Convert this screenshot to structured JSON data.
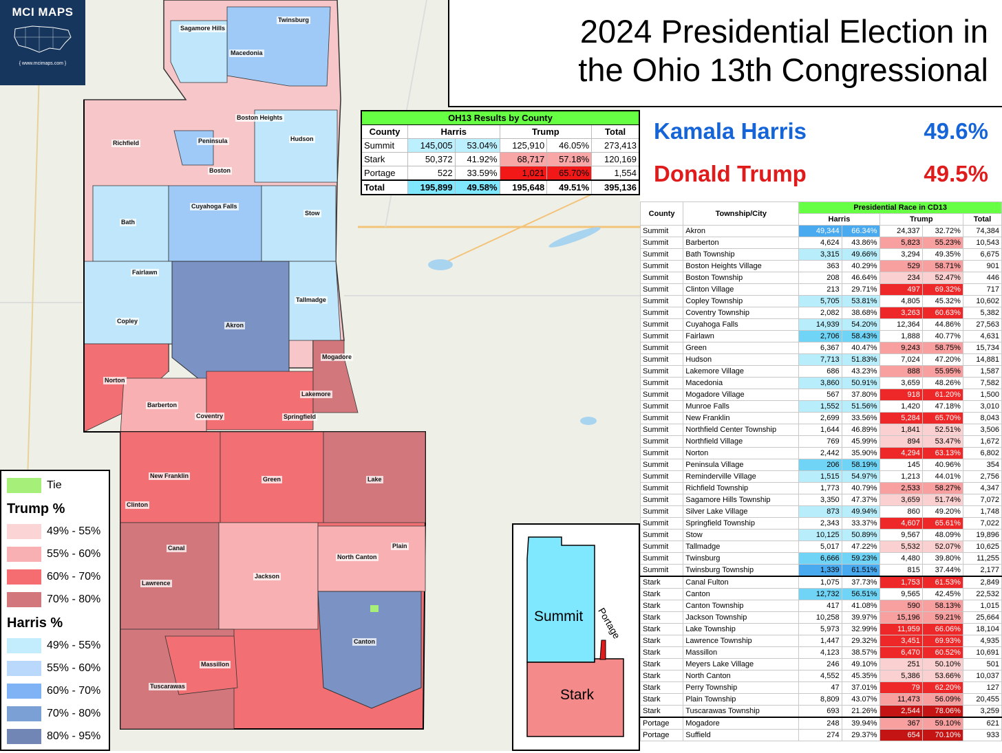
{
  "title_line1": "2024 Presidential Election in",
  "title_line2": "the Ohio 13th Congressional",
  "logo": {
    "name": "MCI MAPS",
    "url": "{ www.mcimaps.com }"
  },
  "candidates": [
    {
      "name": "Kamala Harris",
      "pct": "49.6%",
      "color": "#1565d8"
    },
    {
      "name": "Donald Trump",
      "pct": "49.5%",
      "color": "#e01b1b"
    }
  ],
  "colors": {
    "harris_header": "#1565d8",
    "trump_header": "#e01b1b",
    "tie": "#a6f07a",
    "table_header": "#66ff44"
  },
  "county_table": {
    "title": "OH13 Results by County",
    "headers": [
      "County",
      "Harris",
      "Trump",
      "Total"
    ],
    "rows": [
      {
        "county": "Summit",
        "h": "145,005",
        "hp": "53.04%",
        "t": "125,910",
        "tp": "46.05%",
        "total": "273,413",
        "hc": "#bdf0ff",
        "tc": ""
      },
      {
        "county": "Stark",
        "h": "50,372",
        "hp": "41.92%",
        "t": "68,717",
        "tp": "57.18%",
        "total": "120,169",
        "hc": "",
        "tc": "#f9a6a6"
      },
      {
        "county": "Portage",
        "h": "522",
        "hp": "33.59%",
        "t": "1,021",
        "tp": "65.70%",
        "total": "1,554",
        "hc": "",
        "tc": "#f21818"
      }
    ],
    "total": {
      "county": "Total",
      "h": "195,899",
      "hp": "49.58%",
      "t": "195,648",
      "tp": "49.51%",
      "total": "395,136",
      "hc": "#7fe8ff",
      "tc": ""
    }
  },
  "detail_table": {
    "title": "Presidential Race in CD13",
    "col_county": "County",
    "col_township": "Township/City",
    "col_harris": "Harris",
    "col_trump": "Trump",
    "col_total": "Total",
    "rows": [
      [
        "Summit",
        "Akron",
        "49,344",
        "66.34%",
        "24,337",
        "32.72%",
        "74,384"
      ],
      [
        "Summit",
        "Barberton",
        "4,624",
        "43.86%",
        "5,823",
        "55.23%",
        "10,543"
      ],
      [
        "Summit",
        "Bath Township",
        "3,315",
        "49.66%",
        "3,294",
        "49.35%",
        "6,675"
      ],
      [
        "Summit",
        "Boston Heights Village",
        "363",
        "40.29%",
        "529",
        "58.71%",
        "901"
      ],
      [
        "Summit",
        "Boston Township",
        "208",
        "46.64%",
        "234",
        "52.47%",
        "446"
      ],
      [
        "Summit",
        "Clinton Village",
        "213",
        "29.71%",
        "497",
        "69.32%",
        "717"
      ],
      [
        "Summit",
        "Copley Township",
        "5,705",
        "53.81%",
        "4,805",
        "45.32%",
        "10,602"
      ],
      [
        "Summit",
        "Coventry Township",
        "2,082",
        "38.68%",
        "3,263",
        "60.63%",
        "5,382"
      ],
      [
        "Summit",
        "Cuyahoga Falls",
        "14,939",
        "54.20%",
        "12,364",
        "44.86%",
        "27,563"
      ],
      [
        "Summit",
        "Fairlawn",
        "2,706",
        "58.43%",
        "1,888",
        "40.77%",
        "4,631"
      ],
      [
        "Summit",
        "Green",
        "6,367",
        "40.47%",
        "9,243",
        "58.75%",
        "15,734"
      ],
      [
        "Summit",
        "Hudson",
        "7,713",
        "51.83%",
        "7,024",
        "47.20%",
        "14,881"
      ],
      [
        "Summit",
        "Lakemore Village",
        "686",
        "43.23%",
        "888",
        "55.95%",
        "1,587"
      ],
      [
        "Summit",
        "Macedonia",
        "3,860",
        "50.91%",
        "3,659",
        "48.26%",
        "7,582"
      ],
      [
        "Summit",
        "Mogadore Village",
        "567",
        "37.80%",
        "918",
        "61.20%",
        "1,500"
      ],
      [
        "Summit",
        "Munroe Falls",
        "1,552",
        "51.56%",
        "1,420",
        "47.18%",
        "3,010"
      ],
      [
        "Summit",
        "New Franklin",
        "2,699",
        "33.56%",
        "5,284",
        "65.70%",
        "8,043"
      ],
      [
        "Summit",
        "Northfield Center Township",
        "1,644",
        "46.89%",
        "1,841",
        "52.51%",
        "3,506"
      ],
      [
        "Summit",
        "Northfield Village",
        "769",
        "45.99%",
        "894",
        "53.47%",
        "1,672"
      ],
      [
        "Summit",
        "Norton",
        "2,442",
        "35.90%",
        "4,294",
        "63.13%",
        "6,802"
      ],
      [
        "Summit",
        "Peninsula Village",
        "206",
        "58.19%",
        "145",
        "40.96%",
        "354"
      ],
      [
        "Summit",
        "Reminderville Village",
        "1,515",
        "54.97%",
        "1,213",
        "44.01%",
        "2,756"
      ],
      [
        "Summit",
        "Richfield Township",
        "1,773",
        "40.79%",
        "2,533",
        "58.27%",
        "4,347"
      ],
      [
        "Summit",
        "Sagamore Hills Township",
        "3,350",
        "47.37%",
        "3,659",
        "51.74%",
        "7,072"
      ],
      [
        "Summit",
        "Silver Lake Village",
        "873",
        "49.94%",
        "860",
        "49.20%",
        "1,748"
      ],
      [
        "Summit",
        "Springfield Township",
        "2,343",
        "33.37%",
        "4,607",
        "65.61%",
        "7,022"
      ],
      [
        "Summit",
        "Stow",
        "10,125",
        "50.89%",
        "9,567",
        "48.09%",
        "19,896"
      ],
      [
        "Summit",
        "Tallmadge",
        "5,017",
        "47.22%",
        "5,532",
        "52.07%",
        "10,625"
      ],
      [
        "Summit",
        "Twinsburg",
        "6,666",
        "59.23%",
        "4,480",
        "39.80%",
        "11,255"
      ],
      [
        "Summit",
        "Twinsburg Township",
        "1,339",
        "61.51%",
        "815",
        "37.44%",
        "2,177"
      ],
      [
        "Stark",
        "Canal Fulton",
        "1,075",
        "37.73%",
        "1,753",
        "61.53%",
        "2,849"
      ],
      [
        "Stark",
        "Canton",
        "12,732",
        "56.51%",
        "9,565",
        "42.45%",
        "22,532"
      ],
      [
        "Stark",
        "Canton Township",
        "417",
        "41.08%",
        "590",
        "58.13%",
        "1,015"
      ],
      [
        "Stark",
        "Jackson Township",
        "10,258",
        "39.97%",
        "15,196",
        "59.21%",
        "25,664"
      ],
      [
        "Stark",
        "Lake Township",
        "5,973",
        "32.99%",
        "11,959",
        "66.06%",
        "18,104"
      ],
      [
        "Stark",
        "Lawrence Township",
        "1,447",
        "29.32%",
        "3,451",
        "69.93%",
        "4,935"
      ],
      [
        "Stark",
        "Massillon",
        "4,123",
        "38.57%",
        "6,470",
        "60.52%",
        "10,691"
      ],
      [
        "Stark",
        "Meyers Lake Village",
        "246",
        "49.10%",
        "251",
        "50.10%",
        "501"
      ],
      [
        "Stark",
        "North Canton",
        "4,552",
        "45.35%",
        "5,386",
        "53.66%",
        "10,037"
      ],
      [
        "Stark",
        "Perry Township",
        "47",
        "37.01%",
        "79",
        "62.20%",
        "127"
      ],
      [
        "Stark",
        "Plain Township",
        "8,809",
        "43.07%",
        "11,473",
        "56.09%",
        "20,455"
      ],
      [
        "Stark",
        "Tuscarawas Township",
        "693",
        "21.26%",
        "2,544",
        "78.06%",
        "3,259"
      ],
      [
        "Portage",
        "Mogadore",
        "248",
        "39.94%",
        "367",
        "59.10%",
        "621"
      ],
      [
        "Portage",
        "Suffield",
        "274",
        "29.37%",
        "654",
        "70.10%",
        "933"
      ]
    ]
  },
  "legend": {
    "tie_label": "Tie",
    "trump_heading": "Trump  %",
    "harris_heading": "Harris  %",
    "trump": [
      {
        "label": "49% - 55%",
        "color": "#fbd4d6"
      },
      {
        "label": "55% - 60%",
        "color": "#f8b0b3"
      },
      {
        "label": "60% - 70%",
        "color": "#f56d70"
      },
      {
        "label": "70% - 80%",
        "color": "#d2787c"
      }
    ],
    "harris": [
      {
        "label": "49% - 55%",
        "color": "#c3ecfc"
      },
      {
        "label": "55% - 60%",
        "color": "#b9d8fb"
      },
      {
        "label": "60% - 70%",
        "color": "#7fb3f5"
      },
      {
        "label": "70% - 80%",
        "color": "#7aa0d6"
      },
      {
        "label": "80% - 95%",
        "color": "#7286b6"
      }
    ]
  },
  "inset": {
    "summit": "Summit",
    "stark": "Stark",
    "portage": "Portage",
    "summit_color": "#7fe8ff",
    "stark_color": "#f58a8a",
    "portage_color": "#e01b1b"
  },
  "places": [
    "Sagamore Hills",
    "Macedonia",
    "Twinsburg",
    "Boston Heights",
    "Richfield",
    "Peninsula",
    "Hudson",
    "Boston",
    "Cuyahoga Falls",
    "Stow",
    "Bath",
    "Fairlawn",
    "Tallmadge",
    "Copley",
    "Akron",
    "Mogadore",
    "Norton",
    "Barberton",
    "Coventry",
    "Lakemore",
    "Springfield",
    "New Franklin",
    "Green",
    "Lake",
    "Clinton",
    "Canal",
    "North Canton",
    "Plain",
    "Jackson",
    "Lawrence",
    "Canton",
    "Massillon",
    "Tuscarawas"
  ]
}
